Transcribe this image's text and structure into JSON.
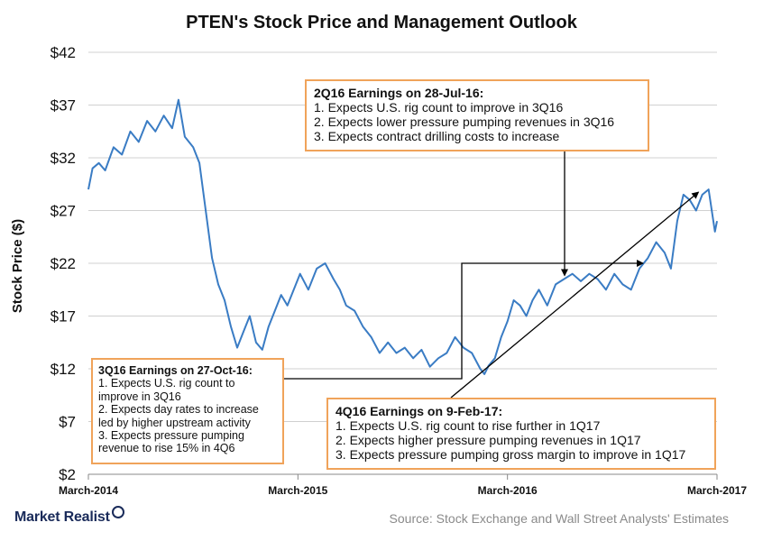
{
  "title": "PTEN's Stock  Price and Management  Outlook",
  "source": "Source: Stock Exchange and Wall Street Analysts' Estimates",
  "logo": "Market Realist",
  "colors": {
    "line": "#3a7cc4",
    "grid": "#d0d0d0",
    "annotation_border": "#f0a35a",
    "arrow": "#000000"
  },
  "annotations": {
    "q2_2016": {
      "heading": "2Q16 Earnings on 28-Jul-16:",
      "lines": [
        "1. Expects U.S. rig count to improve in 3Q16",
        "2. Expects lower pressure pumping revenues in 3Q16",
        "3. Expects contract drilling costs to increase"
      ]
    },
    "q3_2016": {
      "heading": "3Q16 Earnings  on 27-Oct-16:",
      "lines": [
        "1. Expects U.S. rig count to",
        "improve in 3Q16",
        "2. Expects day rates to increase",
        "led by higher upstream activity",
        "3. Expects pressure  pumping",
        "revenue  to rise 15% in 4Q6"
      ]
    },
    "q4_2016": {
      "heading": "4Q16 Earnings on 9-Feb-17:",
      "lines": [
        "1. Expects U.S. rig count to rise further in 1Q17",
        "2. Expects higher pressure pumping revenues in 1Q17",
        "3. Expects pressure pumping gross margin to improve in 1Q17"
      ]
    }
  },
  "chart_data": {
    "type": "line",
    "title": "PTEN's Stock  Price and Management  Outlook",
    "xlabel": "",
    "ylabel": "Stock Price ($)",
    "ylim": [
      2,
      42
    ],
    "yticks": [
      2,
      7,
      12,
      17,
      22,
      27,
      32,
      37,
      42
    ],
    "ytick_labels": [
      "$2",
      "$7",
      "$12",
      "$17",
      "$22",
      "$27",
      "$32",
      "$37",
      "$42"
    ],
    "xlim": [
      2014.0,
      2017.0
    ],
    "xticks": [
      2014.0,
      2015.0,
      2016.0,
      2017.0
    ],
    "xtick_labels": [
      "March-2014",
      "March-2015",
      "March-2016",
      "March-2017"
    ],
    "grid": true,
    "series": [
      {
        "x": [
          2014.0,
          2014.02,
          2014.05,
          2014.08,
          2014.12,
          2014.16,
          2014.2,
          2014.24,
          2014.28,
          2014.32,
          2014.36,
          2014.4,
          2014.43,
          2014.46,
          2014.5,
          2014.53,
          2014.56,
          2014.59,
          2014.62,
          2014.65,
          2014.68,
          2014.71,
          2014.74,
          2014.77,
          2014.8,
          2014.83,
          2014.86,
          2014.89,
          2014.92,
          2014.95,
          2014.98,
          2015.01,
          2015.05,
          2015.09,
          2015.13,
          2015.17,
          2015.2,
          2015.23,
          2015.27,
          2015.31,
          2015.35,
          2015.39,
          2015.43,
          2015.47,
          2015.51,
          2015.55,
          2015.59,
          2015.63,
          2015.67,
          2015.71,
          2015.75,
          2015.79,
          2015.83,
          2015.87,
          2015.89,
          2015.91,
          2015.94,
          2015.97,
          2016.0,
          2016.03,
          2016.06,
          2016.09,
          2016.12,
          2016.15,
          2016.19,
          2016.23,
          2016.27,
          2016.31,
          2016.35,
          2016.39,
          2016.43,
          2016.47,
          2016.51,
          2016.55,
          2016.59,
          2016.63,
          2016.67,
          2016.71,
          2016.75,
          2016.78,
          2016.81,
          2016.84,
          2016.87,
          2016.9,
          2016.93,
          2016.96,
          2016.99,
          2017.0
        ],
        "values": [
          29.0,
          31.0,
          31.5,
          30.8,
          33.0,
          32.3,
          34.5,
          33.5,
          35.5,
          34.5,
          36.0,
          34.8,
          37.5,
          34.0,
          33.0,
          31.5,
          27.0,
          22.5,
          20.0,
          18.5,
          16.0,
          14.0,
          15.5,
          17.0,
          14.5,
          13.8,
          16.0,
          17.5,
          19.0,
          18.0,
          19.5,
          21.0,
          19.5,
          21.5,
          22.0,
          20.5,
          19.5,
          18.0,
          17.5,
          16.0,
          15.0,
          13.5,
          14.5,
          13.5,
          14.0,
          13.0,
          13.8,
          12.2,
          13.0,
          13.5,
          15.0,
          14.0,
          13.5,
          12.0,
          11.5,
          12.3,
          13.0,
          15.0,
          16.5,
          18.5,
          18.0,
          17.0,
          18.5,
          19.5,
          18.0,
          20.0,
          20.5,
          21.0,
          20.3,
          21.0,
          20.5,
          19.5,
          21.0,
          20.0,
          19.5,
          21.5,
          22.5,
          24.0,
          23.0,
          21.5,
          26.0,
          28.5,
          28.0,
          27.0,
          28.5,
          29.0,
          25.0,
          26.0
        ]
      }
    ],
    "annotation_markers": [
      {
        "label": "3Q16 Earnings  on 27-Oct-16:",
        "x": 2016.63,
        "y": 22.0
      },
      {
        "label": "2Q16 Earnings on 28-Jul-16:",
        "x": 2016.39,
        "y": 20.5
      },
      {
        "label": "4Q16 Earnings on 9-Feb-17:",
        "x": 2016.92,
        "y": 29.0
      }
    ]
  }
}
